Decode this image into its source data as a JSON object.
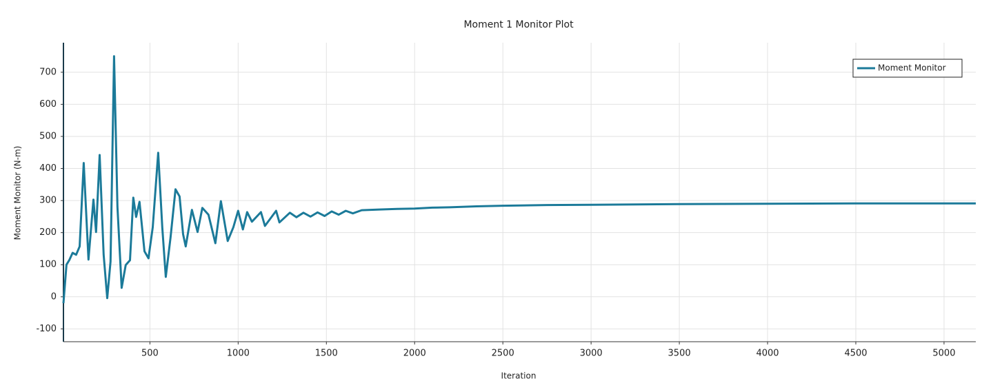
{
  "chart_data": {
    "type": "line",
    "title": "Moment 1 Monitor Plot",
    "x_label": "Iteration",
    "y_label": "Moment Monitor (N-m)",
    "x": [
      10,
      27,
      43,
      62,
      82,
      102,
      125,
      152,
      180,
      195,
      215,
      238,
      258,
      277,
      297,
      316,
      340,
      363,
      387,
      406,
      422,
      441,
      469,
      492,
      516,
      547,
      570,
      590,
      617,
      645,
      668,
      688,
      703,
      738,
      770,
      797,
      832,
      871,
      902,
      941,
      973,
      1000,
      1027,
      1051,
      1078,
      1129,
      1152,
      1215,
      1234,
      1293,
      1330,
      1370,
      1410,
      1450,
      1490,
      1530,
      1570,
      1610,
      1650,
      1700,
      1800,
      1900,
      2000,
      2100,
      2200,
      2350,
      2500,
      2750,
      3000,
      3500,
      4000,
      4500,
      5180
    ],
    "series": [
      {
        "name": "Moment Monitor",
        "color": "#1b7a99",
        "values": [
          -20,
          100,
          114,
          137,
          131,
          157,
          417,
          116,
          303,
          202,
          442,
          131,
          -4,
          110,
          750,
          281,
          28,
          99,
          114,
          309,
          249,
          296,
          142,
          120,
          217,
          449,
          217,
          62,
          185,
          335,
          313,
          195,
          157,
          271,
          202,
          277,
          256,
          167,
          298,
          174,
          217,
          268,
          210,
          264,
          234,
          264,
          221,
          268,
          232,
          262,
          248,
          262,
          250,
          263,
          252,
          266,
          256,
          268,
          260,
          270,
          272,
          274,
          275,
          278,
          279,
          282,
          284,
          286,
          287,
          289,
          290,
          291,
          291
        ]
      }
    ],
    "xlim": [
      10,
      5180
    ],
    "ylim": [
      -140,
      792
    ],
    "xticks": [
      500,
      1000,
      1500,
      2000,
      2500,
      3000,
      3500,
      4000,
      4500,
      5000
    ],
    "yticks": [
      -100,
      0,
      100,
      200,
      300,
      400,
      500,
      600,
      700
    ],
    "grid": true,
    "legend": "upper right"
  }
}
